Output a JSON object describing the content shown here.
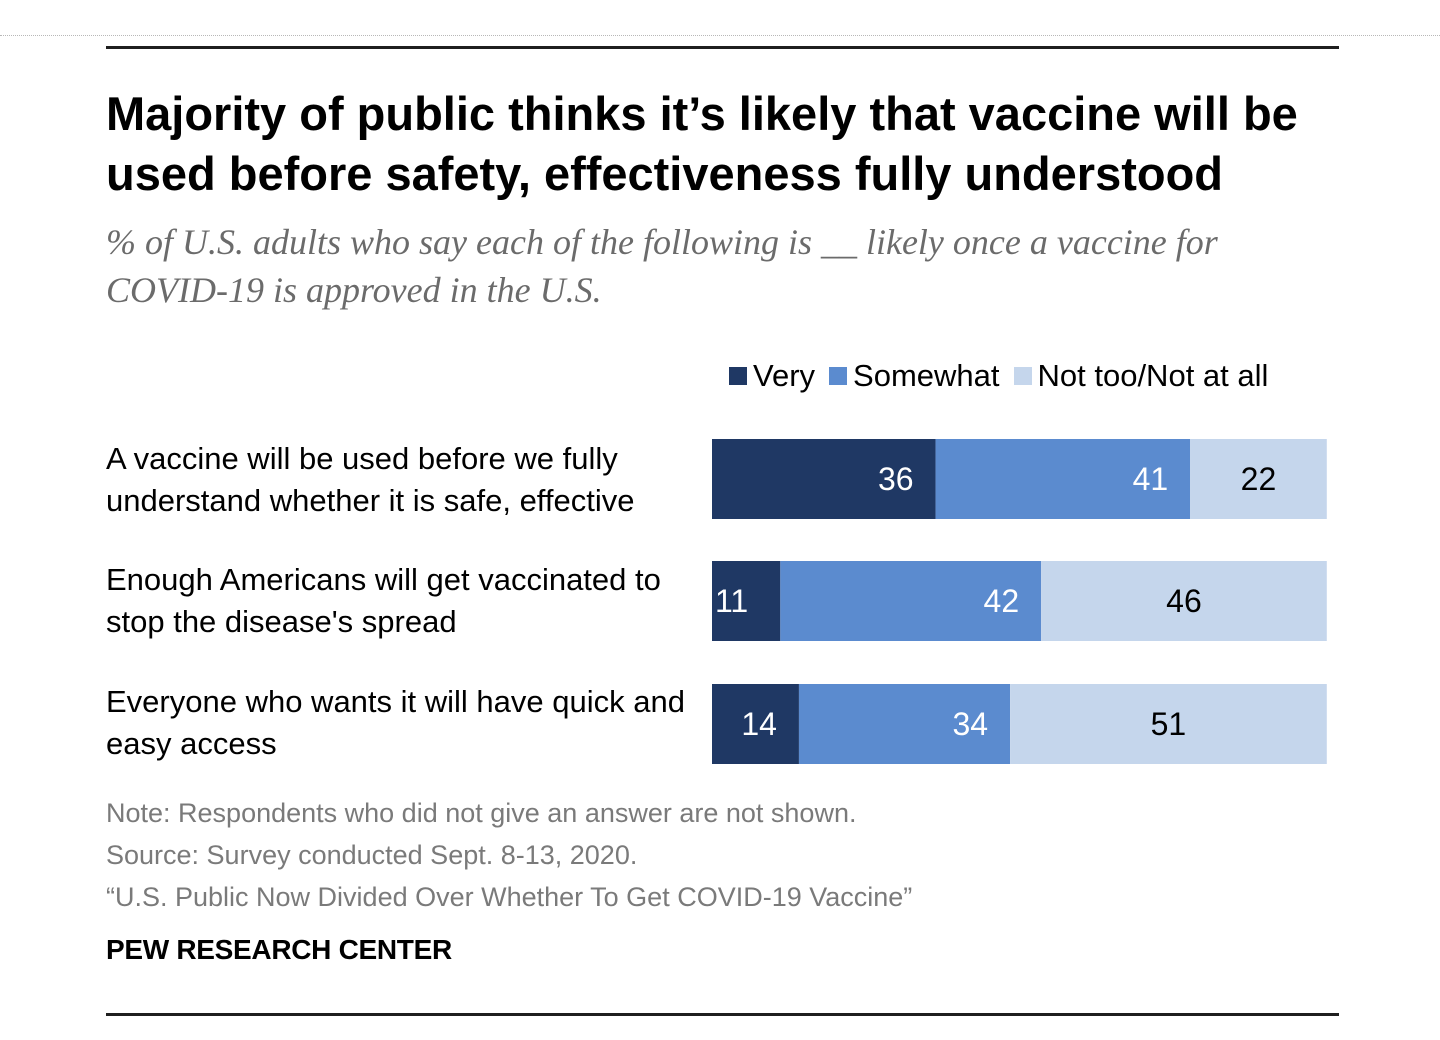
{
  "title": "Majority of public thinks it’s likely that vaccine will be used before safety, effectiveness fully understood",
  "subtitle": "% of U.S. adults who say each of the following is __ likely once a vaccine for COVID-19 is approved in the U.S.",
  "notes": {
    "note": "Note: Respondents who did not give an answer are not shown.",
    "source": "Source: Survey conducted Sept. 8-13, 2020.",
    "report": "“U.S. Public Now Divided Over Whether To Get COVID-19 Vaccine”"
  },
  "brand": "PEW RESEARCH CENTER",
  "chart_data": {
    "type": "bar",
    "orientation": "horizontal",
    "stacked": true,
    "categories": [
      "A vaccine will be used before we fully understand whether it is safe, effective",
      "Enough Americans will get vaccinated to stop the disease's spread",
      "Everyone who wants it will have quick and easy access"
    ],
    "series": [
      {
        "name": "Very",
        "values": [
          36,
          11,
          14
        ],
        "color": "#1f3864",
        "label_color": "#ffffff"
      },
      {
        "name": "Somewhat",
        "values": [
          41,
          42,
          34
        ],
        "color": "#5b8bcf",
        "label_color": "#ffffff"
      },
      {
        "name": "Not too/Not at all",
        "values": [
          22,
          46,
          51
        ],
        "color": "#c5d6ec",
        "label_color": "#000000"
      }
    ],
    "xlim": [
      0,
      100
    ],
    "grid": false,
    "legend_position": "top-right"
  }
}
